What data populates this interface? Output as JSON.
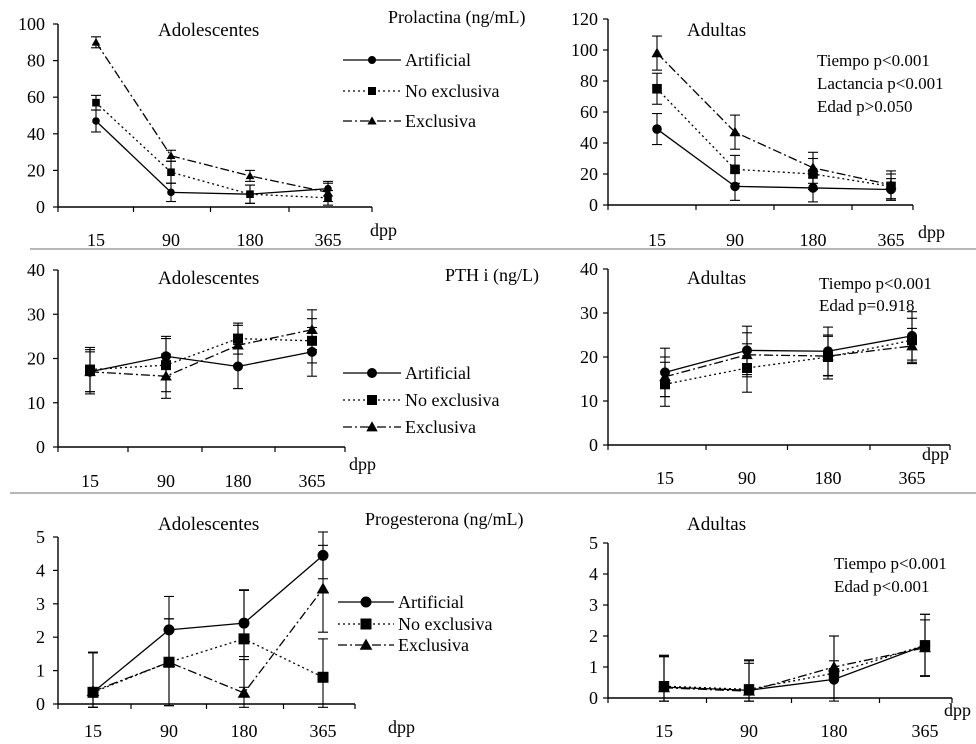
{
  "colors": {
    "line": "#000000",
    "separator": "#8c8c8c",
    "background": "#ffffff"
  },
  "row_titles": [
    "Prolactina  (ng/mL)",
    "PTH i (ng/L)",
    "Progesterona (ng/mL)"
  ],
  "legend": [
    {
      "label": "Artificial",
      "marker": "circle",
      "dash": "solid"
    },
    {
      "label": "No exclusiva",
      "marker": "square",
      "dash": "dotted"
    },
    {
      "label": "Exclusiva",
      "marker": "triangle",
      "dash": "dashdot"
    }
  ],
  "chart_data": [
    {
      "type": "line",
      "row": 0,
      "panel": "left",
      "title": "Adolescentes",
      "xlabel": "dpp",
      "categories": [
        "15",
        "90",
        "180",
        "365"
      ],
      "ylim": [
        0,
        100
      ],
      "yticks": [
        0,
        20,
        40,
        60,
        80,
        100
      ],
      "series": [
        {
          "name": "Artificial",
          "values": [
            47,
            8,
            7,
            10
          ],
          "err": [
            6,
            5,
            5,
            4
          ]
        },
        {
          "name": "No exclusiva",
          "values": [
            57,
            19,
            7,
            5
          ],
          "err": [
            4,
            6,
            5,
            4
          ]
        },
        {
          "name": "Exclusiva",
          "values": [
            90,
            28,
            17,
            8
          ],
          "err": [
            3,
            3,
            3,
            5
          ]
        }
      ]
    },
    {
      "type": "line",
      "row": 0,
      "panel": "right",
      "title": "Adultas",
      "xlabel": "dpp",
      "categories": [
        "15",
        "90",
        "180",
        "365"
      ],
      "ylim": [
        0,
        120
      ],
      "yticks": [
        0,
        20,
        40,
        60,
        80,
        100,
        120
      ],
      "annotations": [
        "Tiempo p<0.001",
        "Lactancia  p<0.001",
        "Edad  p>0.050"
      ],
      "series": [
        {
          "name": "Artificial",
          "values": [
            49,
            12,
            11,
            10
          ],
          "err": [
            10,
            9,
            9,
            7
          ]
        },
        {
          "name": "No exclusiva",
          "values": [
            75,
            23,
            20,
            12
          ],
          "err": [
            10,
            9,
            10,
            8
          ]
        },
        {
          "name": "Exclusiva",
          "values": [
            98,
            47,
            24,
            13
          ],
          "err": [
            11,
            11,
            10,
            9
          ]
        }
      ]
    },
    {
      "type": "line",
      "row": 1,
      "panel": "left",
      "title": "Adolescentes",
      "xlabel": "dpp",
      "categories": [
        "15",
        "90",
        "180",
        "365"
      ],
      "ylim": [
        0,
        40
      ],
      "yticks": [
        0,
        10,
        20,
        30,
        40
      ],
      "series": [
        {
          "name": "Artificial",
          "values": [
            17,
            20.5,
            18.2,
            21.5
          ],
          "err": [
            5,
            4.5,
            5,
            5.5
          ]
        },
        {
          "name": "No exclusiva",
          "values": [
            17.5,
            18.5,
            24.5,
            24
          ],
          "err": [
            5,
            6,
            3.5,
            5
          ]
        },
        {
          "name": "Exclusiva",
          "values": [
            17,
            16,
            23,
            26.5
          ],
          "err": [
            4.5,
            5,
            4.5,
            4.5
          ]
        }
      ]
    },
    {
      "type": "line",
      "row": 1,
      "panel": "right",
      "title": "Adultas",
      "xlabel": "dpp",
      "categories": [
        "15",
        "90",
        "180",
        "365"
      ],
      "ylim": [
        0,
        40
      ],
      "yticks": [
        0,
        10,
        20,
        30,
        40
      ],
      "annotations": [
        "Tiempo p<0.001",
        "Edad p=0.918"
      ],
      "series": [
        {
          "name": "Artificial",
          "values": [
            16.5,
            21.5,
            21.3,
            24.8
          ],
          "err": [
            5.5,
            5.5,
            5.5,
            5.5
          ]
        },
        {
          "name": "No exclusiva",
          "values": [
            13.8,
            17.5,
            20,
            23.8
          ],
          "err": [
            5,
            5.5,
            5,
            5
          ]
        },
        {
          "name": "Exclusiva",
          "values": [
            15.5,
            20.5,
            20.2,
            22.5
          ],
          "err": [
            4.5,
            5,
            4.5,
            4
          ]
        }
      ]
    },
    {
      "type": "line",
      "row": 2,
      "panel": "left",
      "title": "Adolescentes",
      "xlabel": "dpp",
      "categories": [
        "15",
        "90",
        "180",
        "365"
      ],
      "ylim": [
        0,
        5
      ],
      "yticks": [
        0,
        1,
        2,
        3,
        4,
        5
      ],
      "series": [
        {
          "name": "Artificial",
          "values": [
            0.35,
            2.22,
            2.42,
            4.45
          ],
          "err": [
            1.2,
            1.0,
            1.0,
            0.7
          ]
        },
        {
          "name": "No exclusiva",
          "values": [
            0.35,
            1.25,
            1.95,
            0.8
          ],
          "err": [
            1.2,
            1.3,
            1.45,
            1.15
          ]
        },
        {
          "name": "Exclusiva",
          "values": [
            0.38,
            1.25,
            0.33,
            3.45
          ],
          "err": [
            1.15,
            1.3,
            1.0,
            1.3
          ]
        }
      ]
    },
    {
      "type": "line",
      "row": 2,
      "panel": "right",
      "title": "Adultas",
      "xlabel": "dpp",
      "categories": [
        "15",
        "90",
        "180",
        "365"
      ],
      "ylim": [
        0,
        5
      ],
      "yticks": [
        0,
        1,
        2,
        3,
        4,
        5
      ],
      "annotations": [
        "Tiempo p<0.001",
        "Edad p<0.001"
      ],
      "series": [
        {
          "name": "Artificial",
          "values": [
            0.35,
            0.25,
            0.6,
            1.7
          ],
          "err": [
            1.0,
            0.95,
            0.6,
            1.0
          ]
        },
        {
          "name": "No exclusiva",
          "values": [
            0.38,
            0.28,
            0.8,
            1.7
          ],
          "err": [
            1.0,
            0.95,
            1.2,
            1.0
          ]
        },
        {
          "name": "Exclusiva",
          "values": [
            0.33,
            0.22,
            1.0,
            1.62
          ],
          "err": [
            1.0,
            0.9,
            1.0,
            0.9
          ]
        }
      ]
    }
  ]
}
